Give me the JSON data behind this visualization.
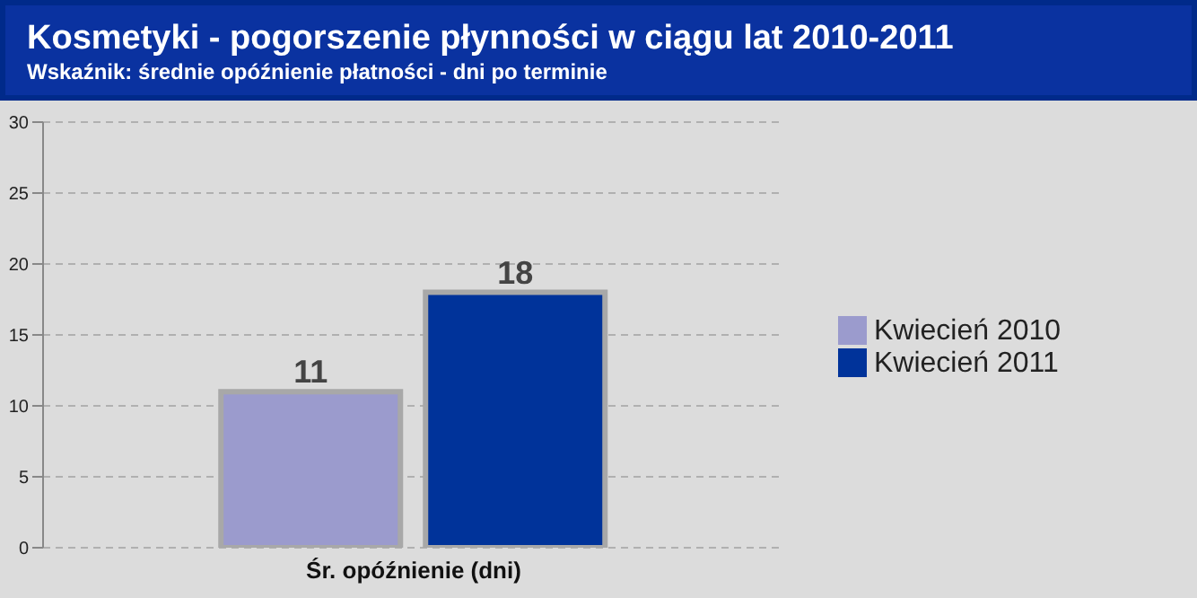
{
  "chart_data": {
    "type": "bar",
    "title": "Kosmetyki - pogorszenie płynności w ciągu lat 2010-2011",
    "subtitle": "Wskaźnik: średnie opóźnienie płatności  - dni po terminie",
    "categories": [
      "Śr. opóźnienie (dni)"
    ],
    "series": [
      {
        "name": "Kwiecień 2010",
        "color": "#9b9bcd",
        "values": [
          11
        ]
      },
      {
        "name": "Kwiecień 2011",
        "color": "#00339a",
        "values": [
          18
        ]
      }
    ],
    "ylim": [
      0,
      30
    ],
    "yticks": [
      0,
      5,
      10,
      15,
      20,
      25,
      30
    ],
    "grid": "y",
    "legend": "right",
    "data_labels": true
  }
}
